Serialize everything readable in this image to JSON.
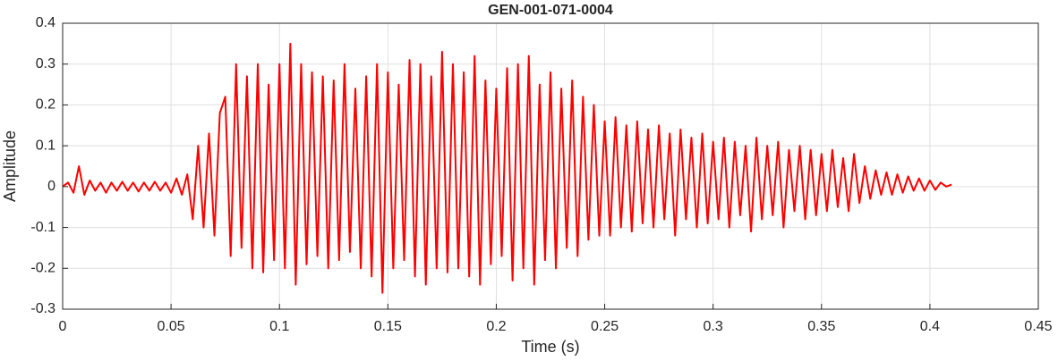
{
  "chart_data": {
    "type": "line",
    "title": "GEN-001-071-0004",
    "xlabel": "Time (s)",
    "ylabel": "Amplitude",
    "color": "#ff0000",
    "grid": true,
    "xlim": [
      0,
      0.45
    ],
    "ylim": [
      -0.3,
      0.4
    ],
    "xticks": [
      0,
      0.05,
      0.1,
      0.15,
      0.2,
      0.25,
      0.3,
      0.35,
      0.4,
      0.45
    ],
    "yticks": [
      -0.3,
      -0.2,
      -0.1,
      0,
      0.1,
      0.2,
      0.3,
      0.4
    ],
    "x": [
      0,
      0.0025,
      0.005,
      0.0075,
      0.01,
      0.0125,
      0.015,
      0.0175,
      0.02,
      0.0225,
      0.025,
      0.0275,
      0.03,
      0.0325,
      0.035,
      0.0375,
      0.04,
      0.0425,
      0.045,
      0.0475,
      0.05,
      0.0525,
      0.055,
      0.0575,
      0.06,
      0.0625,
      0.065,
      0.0675,
      0.07,
      0.0725,
      0.075,
      0.0775,
      0.08,
      0.0825,
      0.085,
      0.0875,
      0.09,
      0.0925,
      0.095,
      0.0975,
      0.1,
      0.1025,
      0.105,
      0.1075,
      0.11,
      0.1125,
      0.115,
      0.1175,
      0.12,
      0.1225,
      0.125,
      0.1275,
      0.13,
      0.1325,
      0.135,
      0.1375,
      0.14,
      0.1425,
      0.145,
      0.1475,
      0.15,
      0.1525,
      0.155,
      0.1575,
      0.16,
      0.1625,
      0.165,
      0.1675,
      0.17,
      0.1725,
      0.175,
      0.1775,
      0.18,
      0.1825,
      0.185,
      0.1875,
      0.19,
      0.1925,
      0.195,
      0.1975,
      0.2,
      0.2025,
      0.205,
      0.2075,
      0.21,
      0.2125,
      0.215,
      0.2175,
      0.22,
      0.2225,
      0.225,
      0.2275,
      0.23,
      0.2325,
      0.235,
      0.2375,
      0.24,
      0.2425,
      0.245,
      0.2475,
      0.25,
      0.2525,
      0.255,
      0.2575,
      0.26,
      0.2625,
      0.265,
      0.2675,
      0.27,
      0.2725,
      0.275,
      0.2775,
      0.28,
      0.2825,
      0.285,
      0.2875,
      0.29,
      0.2925,
      0.295,
      0.2975,
      0.3,
      0.3025,
      0.305,
      0.3075,
      0.31,
      0.3125,
      0.315,
      0.3175,
      0.32,
      0.3225,
      0.325,
      0.3275,
      0.33,
      0.3325,
      0.335,
      0.3375,
      0.34,
      0.3425,
      0.345,
      0.3475,
      0.35,
      0.3525,
      0.355,
      0.3575,
      0.36,
      0.3625,
      0.365,
      0.3675,
      0.37,
      0.3725,
      0.375,
      0.3775,
      0.38,
      0.3825,
      0.385,
      0.3875,
      0.39,
      0.3925,
      0.395,
      0.3975,
      0.4,
      0.4025,
      0.405,
      0.4075,
      0.41
    ],
    "values": [
      0,
      0.01,
      -0.015,
      0.05,
      -0.02,
      0.015,
      -0.01,
      0.01,
      -0.015,
      0.01,
      -0.01,
      0.012,
      -0.01,
      0.01,
      -0.012,
      0.01,
      -0.01,
      0.012,
      -0.01,
      0.01,
      -0.015,
      0.02,
      -0.02,
      0.03,
      -0.08,
      0.1,
      -0.1,
      0.13,
      -0.12,
      0.18,
      0.22,
      -0.17,
      0.3,
      -0.15,
      0.27,
      -0.2,
      0.3,
      -0.21,
      0.25,
      -0.18,
      0.3,
      -0.2,
      0.35,
      -0.24,
      0.3,
      -0.19,
      0.28,
      -0.17,
      0.27,
      -0.2,
      0.26,
      -0.18,
      0.3,
      -0.16,
      0.24,
      -0.2,
      0.27,
      -0.22,
      0.3,
      -0.26,
      0.28,
      -0.2,
      0.25,
      -0.18,
      0.31,
      -0.22,
      0.3,
      -0.24,
      0.27,
      -0.2,
      0.33,
      -0.21,
      0.3,
      -0.2,
      0.28,
      -0.22,
      0.32,
      -0.24,
      0.26,
      -0.19,
      0.24,
      -0.17,
      0.29,
      -0.23,
      0.3,
      -0.2,
      0.32,
      -0.24,
      0.25,
      -0.18,
      0.28,
      -0.2,
      0.24,
      -0.15,
      0.26,
      -0.17,
      0.22,
      -0.13,
      0.2,
      -0.12,
      0.16,
      -0.12,
      0.17,
      -0.1,
      0.15,
      -0.11,
      0.16,
      -0.09,
      0.14,
      -0.1,
      0.15,
      -0.08,
      0.13,
      -0.12,
      0.14,
      -0.08,
      0.12,
      -0.1,
      0.13,
      -0.09,
      0.11,
      -0.08,
      0.12,
      -0.1,
      0.11,
      -0.07,
      0.1,
      -0.11,
      0.12,
      -0.08,
      0.1,
      -0.07,
      0.11,
      -0.1,
      0.09,
      -0.06,
      0.1,
      -0.08,
      0.09,
      -0.07,
      0.08,
      -0.06,
      0.09,
      -0.05,
      0.07,
      -0.06,
      0.08,
      -0.04,
      0.05,
      -0.03,
      0.04,
      -0.02,
      0.035,
      -0.02,
      0.03,
      -0.015,
      0.025,
      -0.01,
      0.02,
      -0.01,
      0.015,
      -0.008,
      0.01,
      0,
      0.005
    ]
  }
}
